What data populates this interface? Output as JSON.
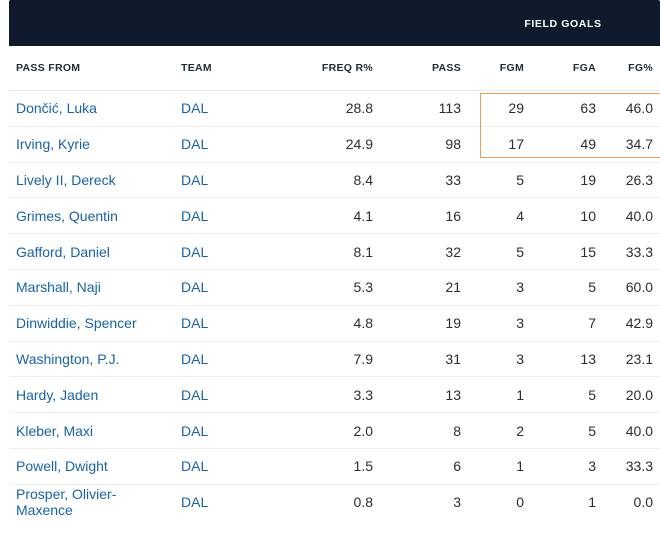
{
  "group_header": "FIELD GOALS",
  "columns": [
    "PASS FROM",
    "TEAM",
    "FREQ R%",
    "PASS",
    "FGM",
    "FGA",
    "FG%"
  ],
  "rows": [
    [
      "Dončić, Luka",
      "DAL",
      "28.8",
      "113",
      "29",
      "63",
      "46.0"
    ],
    [
      "Irving, Kyrie",
      "DAL",
      "24.9",
      "98",
      "17",
      "49",
      "34.7"
    ],
    [
      "Lively II, Dereck",
      "DAL",
      "8.4",
      "33",
      "5",
      "19",
      "26.3"
    ],
    [
      "Grimes, Quentin",
      "DAL",
      "4.1",
      "16",
      "4",
      "10",
      "40.0"
    ],
    [
      "Gafford, Daniel",
      "DAL",
      "8.1",
      "32",
      "5",
      "15",
      "33.3"
    ],
    [
      "Marshall, Naji",
      "DAL",
      "5.3",
      "21",
      "3",
      "5",
      "60.0"
    ],
    [
      "Dinwiddie, Spencer",
      "DAL",
      "4.8",
      "19",
      "3",
      "7",
      "42.9"
    ],
    [
      "Washington, P.J.",
      "DAL",
      "7.9",
      "31",
      "3",
      "13",
      "23.1"
    ],
    [
      "Hardy, Jaden",
      "DAL",
      "3.3",
      "13",
      "1",
      "5",
      "20.0"
    ],
    [
      "Kleber, Maxi",
      "DAL",
      "2.0",
      "8",
      "2",
      "5",
      "40.0"
    ],
    [
      "Powell, Dwight",
      "DAL",
      "1.5",
      "6",
      "1",
      "3",
      "33.3"
    ],
    [
      "Prosper, Olivier-Maxence",
      "DAL",
      "0.8",
      "3",
      "0",
      "1",
      "0.0"
    ]
  ],
  "colors": {
    "header_band": "#0f1b2d",
    "link": "#1763a9",
    "highlight_border": "#ea9d54"
  }
}
